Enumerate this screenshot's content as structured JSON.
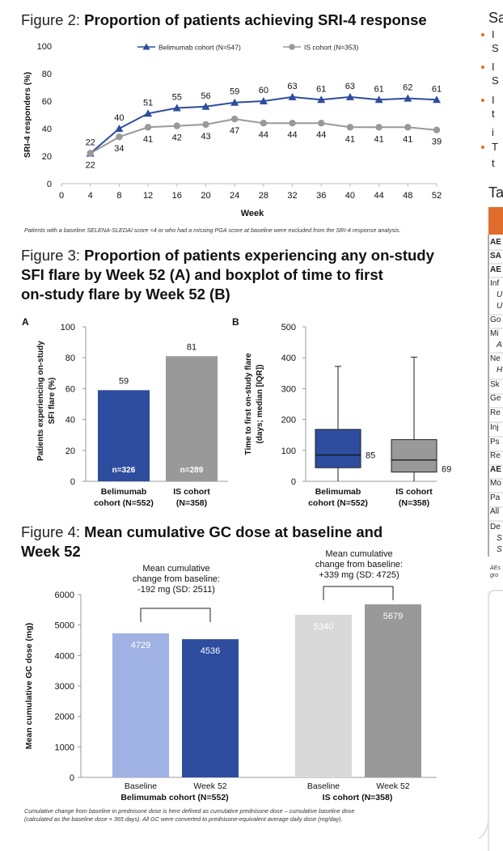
{
  "fig2": {
    "title_prefix": "Figure 2: ",
    "title_bold": "Proportion of patients achieving SRI-4 response",
    "footnote": "Patients with a baseline SELENA-SLEDAI score <4 or who had a missing PGA score at baseline were excluded from the SRI-4 response analysis."
  },
  "fig3": {
    "title_prefix": "Figure 3: ",
    "title_bold_line1": "Proportion of patients experiencing any on-study",
    "title_bold_line2": "SFI flare by Week 52 (A) and boxplot of time to first",
    "title_bold_line3": "on-study flare by Week 52 (B)"
  },
  "fig4": {
    "title_prefix": "Figure 4: ",
    "title_bold_line1": "Mean cumulative GC dose at baseline and",
    "title_bold_line2": "Week 52",
    "footnote_line1": "Cumulative change from baseline in prednisone dose is here defined as cumulative prednisone dose – cumulative baseline dose",
    "footnote_line2": "(calculated as the baseline dose × 365 days). All GC were converted to prednisone-equivalent average daily dose (mg/day)."
  },
  "right_panel": {
    "heading_fragment": "Sa",
    "table_heading_fragment": "Ta",
    "row_fragments": [
      "AE",
      "SA",
      "AE",
      "Inf",
      "U",
      "U",
      "Go",
      "Mi",
      "A",
      "Ne",
      "H",
      "Sk",
      "Ge",
      "Re",
      "Inj",
      "Ps",
      "Re",
      "AE",
      "Mo",
      "Pa",
      "All",
      "De",
      "S",
      "S"
    ],
    "bullet_fragments": [
      "I",
      "S",
      "I",
      "S",
      "I",
      "t",
      "i",
      "T",
      "t"
    ],
    "footer_fragments": [
      "AEs",
      "gro"
    ]
  },
  "colors": {
    "belimumab": "#2e4d9e",
    "is_cohort": "#999999",
    "baseline_belimumab": "#9fb2e3",
    "baseline_is": "#d9d9d9",
    "week52_is": "#999999",
    "accent_orange": "#e06c2c"
  },
  "chart_data": [
    {
      "id": "fig2",
      "type": "line",
      "title": "Proportion of patients achieving SRI-4 response",
      "xlabel": "Week",
      "ylabel": "SRI-4 responders (%)",
      "x": [
        4,
        8,
        12,
        16,
        20,
        24,
        28,
        32,
        36,
        40,
        44,
        48,
        52
      ],
      "xlim": [
        0,
        52
      ],
      "ylim": [
        0,
        100
      ],
      "xticks": [
        0,
        4,
        8,
        12,
        16,
        20,
        24,
        28,
        32,
        36,
        40,
        44,
        48,
        52
      ],
      "yticks": [
        0,
        20,
        40,
        60,
        80,
        100
      ],
      "legend_position": "top",
      "series": [
        {
          "name": "Belimumab cohort (N=547)",
          "values": [
            22,
            40,
            51,
            55,
            56,
            59,
            60,
            63,
            61,
            63,
            61,
            62,
            61
          ],
          "labels": [
            "22",
            "40",
            "51",
            "55",
            "56",
            "59",
            "60",
            "63",
            "61",
            "63",
            "61",
            "62",
            "61"
          ],
          "marker": "triangle"
        },
        {
          "name": "IS cohort (N=353)",
          "values": [
            22,
            34,
            41,
            42,
            43,
            47,
            44,
            44,
            44,
            41,
            41,
            41,
            39
          ],
          "labels": [
            "22",
            "34",
            "41",
            "42",
            "43",
            "47",
            "44",
            "44",
            "44",
            "41",
            "41",
            "41",
            "39"
          ],
          "marker": "circle"
        }
      ]
    },
    {
      "id": "fig3a",
      "type": "bar",
      "panel": "A",
      "ylabel_line1": "Patients experiencing on-study",
      "ylabel_line2": "SFI flare (%)",
      "ylim": [
        0,
        100
      ],
      "yticks": [
        0,
        20,
        40,
        60,
        80,
        100
      ],
      "categories_line1": [
        "Belimumab",
        "IS cohort"
      ],
      "categories_line2": [
        "cohort (N=552)",
        "(N=358)"
      ],
      "values": [
        59,
        81
      ],
      "value_labels": [
        "59",
        "81"
      ],
      "n_labels": [
        "n=326",
        "n=289"
      ]
    },
    {
      "id": "fig3b",
      "type": "boxplot",
      "panel": "B",
      "ylabel_line1": "Time to first on-study flare",
      "ylabel_line2": "(days; median [IQR])",
      "ylim": [
        0,
        500
      ],
      "yticks": [
        0,
        100,
        200,
        300,
        400,
        500
      ],
      "categories_line1": [
        "Belimumab",
        "IS cohort"
      ],
      "categories_line2": [
        "cohort (N=552)",
        "(N=358)"
      ],
      "boxes": [
        {
          "min": 0,
          "q1": 44,
          "median": 85,
          "q3": 168,
          "max": 372,
          "median_label": "85"
        },
        {
          "min": 0,
          "q1": 30,
          "median": 69,
          "q3": 135,
          "max": 402,
          "median_label": "69"
        }
      ]
    },
    {
      "id": "fig4",
      "type": "bar",
      "ylabel": "Mean cumulative GC dose (mg)",
      "ylim": [
        0,
        6000
      ],
      "yticks": [
        0,
        1000,
        2000,
        3000,
        4000,
        5000,
        6000
      ],
      "groups": [
        {
          "name": "Belimumab cohort (N=552)",
          "categories": [
            "Baseline",
            "Week 52"
          ],
          "values": [
            4729,
            4536
          ],
          "value_labels": [
            "4729",
            "4536"
          ],
          "annotation_lines": [
            "Mean cumulative",
            "change from baseline:",
            "-192 mg (SD: 2511)"
          ]
        },
        {
          "name": "IS cohort (N=358)",
          "categories": [
            "Baseline",
            "Week 52"
          ],
          "values": [
            5340,
            5679
          ],
          "value_labels": [
            "5340",
            "5679"
          ],
          "annotation_lines": [
            "Mean cumulative",
            "change from baseline:",
            "+339 mg (SD: 4725)"
          ]
        }
      ]
    }
  ]
}
